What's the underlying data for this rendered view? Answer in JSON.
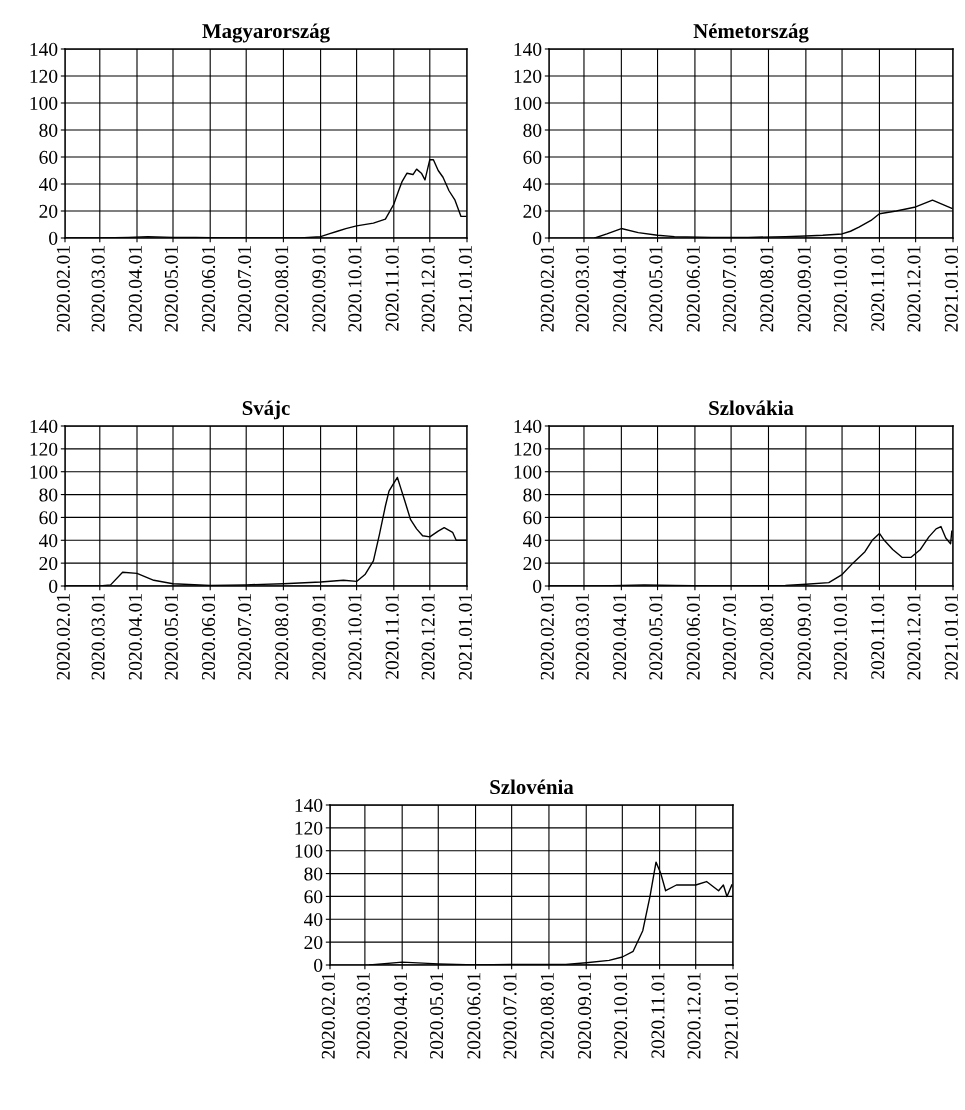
{
  "chart_data": [
    {
      "type": "line",
      "title": "Magyarország",
      "x": [
        "2020-02-01",
        "2020-03-01",
        "2020-03-25",
        "2020-04-10",
        "2020-05-01",
        "2020-05-20",
        "2020-06-15",
        "2020-07-15",
        "2020-08-15",
        "2020-09-01",
        "2020-09-08",
        "2020-09-15",
        "2020-09-22",
        "2020-10-01",
        "2020-10-15",
        "2020-10-25",
        "2020-11-01",
        "2020-11-05",
        "2020-11-08",
        "2020-11-12",
        "2020-11-17",
        "2020-11-20",
        "2020-11-24",
        "2020-11-27",
        "2020-12-01",
        "2020-12-04",
        "2020-12-08",
        "2020-12-12",
        "2020-12-17",
        "2020-12-22",
        "2020-12-27",
        "2020-12-31"
      ],
      "series": [
        {
          "color": "#000000",
          "values": [
            0,
            0,
            0.5,
            1,
            0.5,
            0.5,
            0,
            0,
            0,
            1,
            3,
            5,
            7,
            9,
            11,
            14,
            25,
            35,
            42,
            48,
            47,
            51,
            48,
            43,
            58,
            58,
            50,
            45,
            35,
            28,
            16,
            16
          ]
        }
      ],
      "xlim": [
        "2020-02-01",
        "2021-01-01"
      ],
      "xticks": [
        {
          "value": "2020-02-01",
          "label": "2020.02.01"
        },
        {
          "value": "2020-03-01",
          "label": "2020.03.01"
        },
        {
          "value": "2020-04-01",
          "label": "2020.04.01"
        },
        {
          "value": "2020-05-01",
          "label": "2020.05.01"
        },
        {
          "value": "2020-06-01",
          "label": "2020.06.01"
        },
        {
          "value": "2020-07-01",
          "label": "2020.07.01"
        },
        {
          "value": "2020-08-01",
          "label": "2020.08.01"
        },
        {
          "value": "2020-09-01",
          "label": "2020.09.01"
        },
        {
          "value": "2020-10-01",
          "label": "2020.10.01"
        },
        {
          "value": "2020-11-01",
          "label": "2020.11.01"
        },
        {
          "value": "2020-12-01",
          "label": "2020.12.01"
        },
        {
          "value": "2021-01-01",
          "label": "2021.01.01"
        }
      ],
      "ylim": [
        0,
        140
      ],
      "yticks": [
        0,
        20,
        40,
        60,
        80,
        100,
        120,
        140
      ],
      "grid": true
    },
    {
      "type": "line",
      "title": "Németország",
      "x": [
        "2020-03-10",
        "2020-03-20",
        "2020-04-01",
        "2020-04-15",
        "2020-05-01",
        "2020-05-15",
        "2020-06-15",
        "2020-07-15",
        "2020-08-15",
        "2020-09-01",
        "2020-09-15",
        "2020-10-01",
        "2020-10-08",
        "2020-10-15",
        "2020-10-25",
        "2020-11-01",
        "2020-11-15",
        "2020-12-01",
        "2020-12-15",
        "2020-12-31"
      ],
      "series": [
        {
          "color": "#000000",
          "values": [
            0,
            3,
            7,
            4,
            2,
            1,
            0.5,
            0.5,
            1,
            1.5,
            2,
            3,
            5,
            8,
            13,
            18,
            20,
            23,
            28,
            22
          ]
        }
      ],
      "xlim": [
        "2020-02-01",
        "2021-01-01"
      ],
      "xticks": [
        {
          "value": "2020-02-01",
          "label": "2020.02.01"
        },
        {
          "value": "2020-03-01",
          "label": "2020.03.01"
        },
        {
          "value": "2020-04-01",
          "label": "2020.04.01"
        },
        {
          "value": "2020-05-01",
          "label": "2020.05.01"
        },
        {
          "value": "2020-06-01",
          "label": "2020.06.01"
        },
        {
          "value": "2020-07-01",
          "label": "2020.07.01"
        },
        {
          "value": "2020-08-01",
          "label": "2020.08.01"
        },
        {
          "value": "2020-09-01",
          "label": "2020.09.01"
        },
        {
          "value": "2020-10-01",
          "label": "2020.10.01"
        },
        {
          "value": "2020-11-01",
          "label": "2020.11.01"
        },
        {
          "value": "2020-12-01",
          "label": "2020.12.01"
        },
        {
          "value": "2021-01-01",
          "label": "2021.01.01"
        }
      ],
      "ylim": [
        0,
        140
      ],
      "yticks": [
        0,
        20,
        40,
        60,
        80,
        100,
        120,
        140
      ],
      "grid": true
    },
    {
      "type": "line",
      "title": "Svájc",
      "x": [
        "2020-02-01",
        "2020-03-01",
        "2020-03-10",
        "2020-03-20",
        "2020-04-01",
        "2020-04-15",
        "2020-05-01",
        "2020-06-01",
        "2020-07-01",
        "2020-08-01",
        "2020-09-01",
        "2020-09-20",
        "2020-10-01",
        "2020-10-08",
        "2020-10-15",
        "2020-10-20",
        "2020-10-25",
        "2020-10-28",
        "2020-11-01",
        "2020-11-04",
        "2020-11-07",
        "2020-11-10",
        "2020-11-15",
        "2020-11-20",
        "2020-11-25",
        "2020-12-01",
        "2020-12-08",
        "2020-12-13",
        "2020-12-20",
        "2020-12-23",
        "2020-12-31"
      ],
      "series": [
        {
          "color": "#000000",
          "values": [
            0,
            0,
            1,
            12,
            11,
            5,
            2,
            0.5,
            1,
            2,
            3.5,
            5,
            4,
            10,
            22,
            45,
            70,
            83,
            90,
            95,
            85,
            75,
            58,
            50,
            44,
            43,
            48,
            51,
            47,
            40,
            40
          ]
        }
      ],
      "xlim": [
        "2020-02-01",
        "2021-01-01"
      ],
      "xticks": [
        {
          "value": "2020-02-01",
          "label": "2020.02.01"
        },
        {
          "value": "2020-03-01",
          "label": "2020.03.01"
        },
        {
          "value": "2020-04-01",
          "label": "2020.04.01"
        },
        {
          "value": "2020-05-01",
          "label": "2020.05.01"
        },
        {
          "value": "2020-06-01",
          "label": "2020.06.01"
        },
        {
          "value": "2020-07-01",
          "label": "2020.07.01"
        },
        {
          "value": "2020-08-01",
          "label": "2020.08.01"
        },
        {
          "value": "2020-09-01",
          "label": "2020.09.01"
        },
        {
          "value": "2020-10-01",
          "label": "2020.10.01"
        },
        {
          "value": "2020-11-01",
          "label": "2020.11.01"
        },
        {
          "value": "2020-12-01",
          "label": "2020.12.01"
        },
        {
          "value": "2021-01-01",
          "label": "2021.01.01"
        }
      ],
      "ylim": [
        0,
        140
      ],
      "yticks": [
        0,
        20,
        40,
        60,
        80,
        100,
        120,
        140
      ],
      "grid": true
    },
    {
      "type": "line",
      "title": "Szlovákia",
      "x": [
        "2020-02-01",
        "2020-03-15",
        "2020-04-20",
        "2020-05-15",
        "2020-06-15",
        "2020-07-15",
        "2020-08-15",
        "2020-09-01",
        "2020-09-20",
        "2020-10-01",
        "2020-10-10",
        "2020-10-20",
        "2020-10-26",
        "2020-11-01",
        "2020-11-05",
        "2020-11-12",
        "2020-11-20",
        "2020-11-27",
        "2020-12-05",
        "2020-12-12",
        "2020-12-18",
        "2020-12-22",
        "2020-12-26",
        "2020-12-30",
        "2020-12-31"
      ],
      "series": [
        {
          "color": "#000000",
          "values": [
            0,
            0,
            1,
            0.5,
            0,
            0,
            0.5,
            1.5,
            3,
            10,
            20,
            30,
            40,
            46,
            40,
            32,
            25,
            25,
            32,
            43,
            50,
            52,
            42,
            37,
            48
          ]
        }
      ],
      "xlim": [
        "2020-02-01",
        "2021-01-01"
      ],
      "xticks": [
        {
          "value": "2020-02-01",
          "label": "2020.02.01"
        },
        {
          "value": "2020-03-01",
          "label": "2020.03.01"
        },
        {
          "value": "2020-04-01",
          "label": "2020.04.01"
        },
        {
          "value": "2020-05-01",
          "label": "2020.05.01"
        },
        {
          "value": "2020-06-01",
          "label": "2020.06.01"
        },
        {
          "value": "2020-07-01",
          "label": "2020.07.01"
        },
        {
          "value": "2020-08-01",
          "label": "2020.08.01"
        },
        {
          "value": "2020-09-01",
          "label": "2020.09.01"
        },
        {
          "value": "2020-10-01",
          "label": "2020.10.01"
        },
        {
          "value": "2020-11-01",
          "label": "2020.11.01"
        },
        {
          "value": "2020-12-01",
          "label": "2020.12.01"
        },
        {
          "value": "2021-01-01",
          "label": "2021.01.01"
        }
      ],
      "ylim": [
        0,
        140
      ],
      "yticks": [
        0,
        20,
        40,
        60,
        80,
        100,
        120,
        140
      ],
      "grid": true
    },
    {
      "type": "line",
      "title": "Szlovénia",
      "x": [
        "2020-03-05",
        "2020-04-01",
        "2020-05-01",
        "2020-06-01",
        "2020-07-01",
        "2020-08-15",
        "2020-09-01",
        "2020-09-20",
        "2020-10-01",
        "2020-10-10",
        "2020-10-18",
        "2020-10-24",
        "2020-10-29",
        "2020-11-02",
        "2020-11-06",
        "2020-11-15",
        "2020-12-01",
        "2020-12-10",
        "2020-12-20",
        "2020-12-24",
        "2020-12-27",
        "2020-12-31"
      ],
      "series": [
        {
          "color": "#000000",
          "values": [
            0,
            2.5,
            1,
            0,
            0.5,
            0.5,
            2,
            4,
            7,
            12,
            30,
            60,
            90,
            80,
            65,
            70,
            70,
            73,
            65,
            70,
            60,
            70
          ]
        }
      ],
      "xlim": [
        "2020-02-01",
        "2021-01-01"
      ],
      "xticks": [
        {
          "value": "2020-02-01",
          "label": "2020.02.01"
        },
        {
          "value": "2020-03-01",
          "label": "2020.03.01"
        },
        {
          "value": "2020-04-01",
          "label": "2020.04.01"
        },
        {
          "value": "2020-05-01",
          "label": "2020.05.01"
        },
        {
          "value": "2020-06-01",
          "label": "2020.06.01"
        },
        {
          "value": "2020-07-01",
          "label": "2020.07.01"
        },
        {
          "value": "2020-08-01",
          "label": "2020.08.01"
        },
        {
          "value": "2020-09-01",
          "label": "2020.09.01"
        },
        {
          "value": "2020-10-01",
          "label": "2020.10.01"
        },
        {
          "value": "2020-11-01",
          "label": "2020.11.01"
        },
        {
          "value": "2020-12-01",
          "label": "2020.12.01"
        },
        {
          "value": "2021-01-01",
          "label": "2021.01.01"
        }
      ],
      "ylim": [
        0,
        140
      ],
      "yticks": [
        0,
        20,
        40,
        60,
        80,
        100,
        120,
        140
      ],
      "grid": true
    }
  ]
}
